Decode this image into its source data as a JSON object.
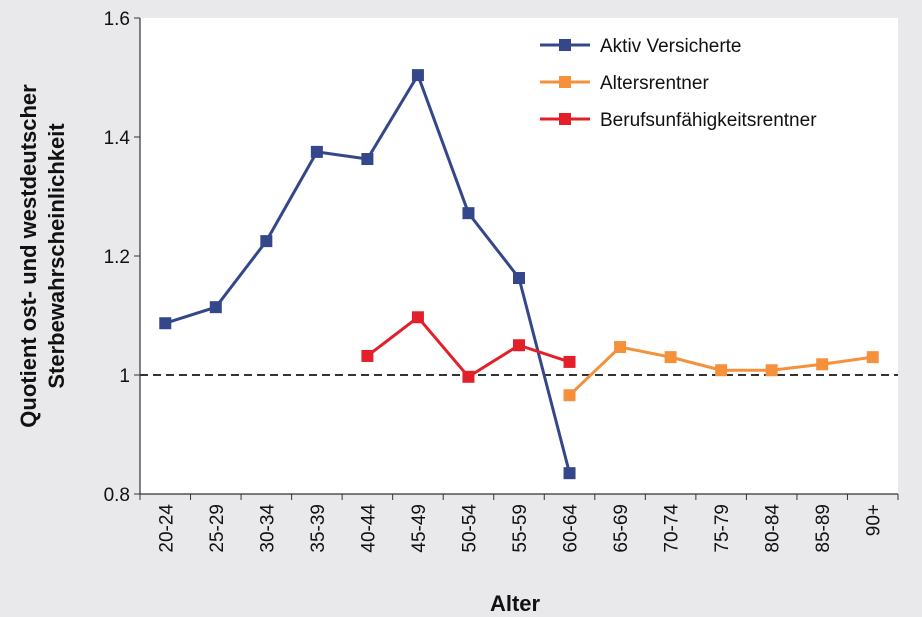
{
  "chart_data": {
    "type": "line",
    "xlabel": "Alter",
    "ylabel": [
      "Quotient ost- und westdeutscher",
      "Sterbewahrscheinlichkeit"
    ],
    "categories": [
      "20-24",
      "25-29",
      "30-34",
      "35-39",
      "40-44",
      "45-49",
      "50-54",
      "55-59",
      "60-64",
      "65-69",
      "70-74",
      "75-79",
      "80-84",
      "85-89",
      "90+"
    ],
    "series": [
      {
        "name": "Aktiv Versicherte",
        "color": "#33478a",
        "values": [
          1.087,
          1.114,
          1.225,
          1.375,
          1.363,
          1.504,
          1.272,
          1.163,
          0.835,
          null,
          null,
          null,
          null,
          null,
          null
        ]
      },
      {
        "name": "Altersrentner",
        "color": "#f5913a",
        "values": [
          null,
          null,
          null,
          null,
          null,
          null,
          null,
          null,
          0.966,
          1.047,
          1.03,
          1.008,
          1.008,
          1.018,
          1.03
        ]
      },
      {
        "name": "Berufsunfähigkeitsrentner",
        "color": "#e3202a",
        "values": [
          null,
          null,
          null,
          null,
          1.032,
          1.097,
          0.997,
          1.05,
          1.022,
          null,
          null,
          null,
          null,
          null,
          null
        ]
      }
    ],
    "ylim": [
      0.8,
      1.6
    ],
    "yticks": [
      0.8,
      1,
      1.2,
      1.4,
      1.6
    ],
    "reference_line": 1,
    "grid": false,
    "legend": "upper right"
  }
}
